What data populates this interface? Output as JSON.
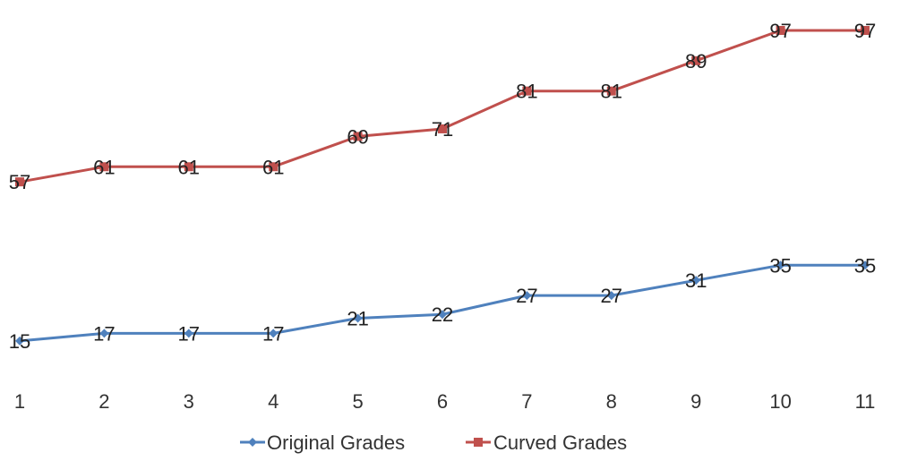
{
  "chart_data": {
    "type": "line",
    "title": "",
    "xlabel": "",
    "ylabel": "",
    "categories": [
      "1",
      "2",
      "3",
      "4",
      "5",
      "6",
      "7",
      "8",
      "9",
      "10",
      "11"
    ],
    "series": [
      {
        "name": "Original Grades",
        "color": "#4f81bd",
        "marker": "diamond",
        "values": [
          15,
          17,
          17,
          17,
          21,
          22,
          27,
          27,
          31,
          35,
          35
        ]
      },
      {
        "name": "Curved Grades",
        "color": "#c0504d",
        "marker": "square",
        "values": [
          57,
          61,
          61,
          61,
          69,
          71,
          81,
          81,
          89,
          97,
          97
        ]
      }
    ],
    "ylim": [
      0,
      100
    ],
    "grid": false,
    "data_labels": true,
    "legend_position": "bottom"
  }
}
